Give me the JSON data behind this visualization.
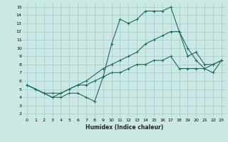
{
  "xlabel": "Humidex (Indice chaleur)",
  "xlim": [
    -0.5,
    23.5
  ],
  "ylim": [
    1.5,
    15.5
  ],
  "xticks": [
    0,
    1,
    2,
    3,
    4,
    5,
    6,
    7,
    8,
    9,
    10,
    11,
    12,
    13,
    14,
    15,
    16,
    17,
    18,
    19,
    20,
    21,
    22,
    23
  ],
  "yticks": [
    2,
    3,
    4,
    5,
    6,
    7,
    8,
    9,
    10,
    11,
    12,
    13,
    14,
    15
  ],
  "bg_color": "#cce8e4",
  "grid_color": "#a0ccc8",
  "line_color": "#1a6b60",
  "lines": [
    {
      "x": [
        0,
        1,
        2,
        3,
        4,
        5,
        6,
        7,
        8,
        9,
        10,
        11,
        12,
        13,
        14,
        15,
        16,
        17,
        18,
        19,
        20,
        21,
        22,
        23
      ],
      "y": [
        5.5,
        5.0,
        4.5,
        4.0,
        4.0,
        4.5,
        4.5,
        4.0,
        3.5,
        6.5,
        10.5,
        13.5,
        13.0,
        13.5,
        14.5,
        14.5,
        14.5,
        15.0,
        12.0,
        10.0,
        8.5,
        7.5,
        8.0,
        8.5
      ]
    },
    {
      "x": [
        0,
        2,
        3,
        4,
        5,
        7,
        9,
        10,
        11,
        12,
        13,
        14,
        15,
        16,
        17,
        18,
        19,
        20,
        21,
        22,
        23
      ],
      "y": [
        5.5,
        4.5,
        4.0,
        4.5,
        5.0,
        6.0,
        7.5,
        8.0,
        8.5,
        9.0,
        9.5,
        10.5,
        11.0,
        11.5,
        12.0,
        12.0,
        9.0,
        9.5,
        8.0,
        8.0,
        8.5
      ]
    },
    {
      "x": [
        0,
        1,
        2,
        3,
        4,
        5,
        6,
        7,
        8,
        9,
        10,
        11,
        12,
        13,
        14,
        15,
        16,
        17,
        18,
        19,
        20,
        21,
        22,
        23
      ],
      "y": [
        5.5,
        5.0,
        4.5,
        4.5,
        4.5,
        5.0,
        5.5,
        5.5,
        6.0,
        6.5,
        7.0,
        7.0,
        7.5,
        8.0,
        8.0,
        8.5,
        8.5,
        9.0,
        7.5,
        7.5,
        7.5,
        7.5,
        7.0,
        8.5
      ]
    }
  ]
}
